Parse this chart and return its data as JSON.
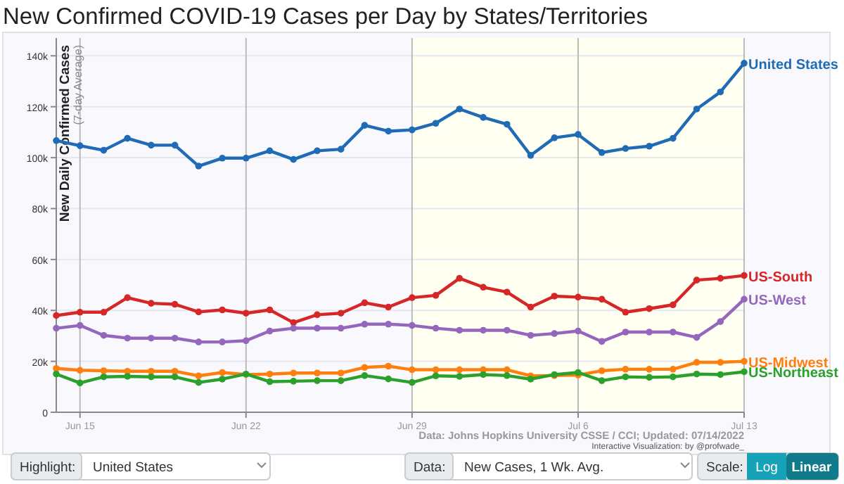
{
  "chart_data": {
    "type": "line",
    "title": "New Confirmed COVID-19 Cases per Day by States/Territories",
    "ylabel": "New Daily Confirmed Cases",
    "x": [
      "2022-06-14",
      "2022-06-15",
      "2022-06-16",
      "2022-06-17",
      "2022-06-18",
      "2022-06-19",
      "2022-06-20",
      "2022-06-21",
      "2022-06-22",
      "2022-06-23",
      "2022-06-24",
      "2022-06-25",
      "2022-06-26",
      "2022-06-27",
      "2022-06-28",
      "2022-06-29",
      "2022-06-30",
      "2022-07-01",
      "2022-07-02",
      "2022-07-03",
      "2022-07-04",
      "2022-07-05",
      "2022-07-06",
      "2022-07-07",
      "2022-07-08",
      "2022-07-09",
      "2022-07-10",
      "2022-07-11",
      "2022-07-12",
      "2022-07-13"
    ],
    "series": [
      {
        "name": "United States",
        "color": "#1f6bb5",
        "values": [
          106700,
          104700,
          102900,
          107600,
          104900,
          104900,
          96700,
          99800,
          99800,
          102700,
          99300,
          102700,
          103300,
          112700,
          110400,
          110900,
          113500,
          119100,
          115800,
          113100,
          100900,
          107800,
          109100,
          102000,
          103600,
          104500,
          107600,
          119100,
          125800,
          137100
        ]
      },
      {
        "name": "US-South",
        "color": "#d62728",
        "values": [
          38000,
          39300,
          39300,
          45000,
          42800,
          42400,
          39400,
          40200,
          38900,
          40200,
          35200,
          38300,
          38900,
          43000,
          41300,
          45000,
          45900,
          52600,
          49100,
          47200,
          41300,
          45600,
          45200,
          44400,
          39300,
          40700,
          42200,
          51900,
          52600,
          53700
        ]
      },
      {
        "name": "US-West",
        "color": "#9467bd",
        "values": [
          33000,
          34100,
          30200,
          29100,
          29100,
          29100,
          27600,
          27600,
          28100,
          31900,
          33000,
          33000,
          33000,
          34600,
          34600,
          34100,
          33000,
          32200,
          32200,
          32200,
          30200,
          30900,
          31900,
          27800,
          31500,
          31500,
          31500,
          29400,
          35600,
          44400
        ]
      },
      {
        "name": "US-Midwest",
        "color": "#ff7f0e",
        "values": [
          17200,
          16500,
          16300,
          16100,
          16100,
          16100,
          14300,
          15600,
          14800,
          15000,
          15400,
          15400,
          15400,
          17600,
          18100,
          16700,
          16700,
          16700,
          16700,
          16700,
          14300,
          14400,
          14600,
          16300,
          16900,
          16900,
          16900,
          19600,
          19600,
          20000
        ]
      },
      {
        "name": "US-Northeast",
        "color": "#2ca02c",
        "values": [
          15000,
          11500,
          13900,
          14100,
          13900,
          13900,
          11700,
          13000,
          15000,
          12000,
          12200,
          12400,
          12400,
          14400,
          13100,
          11700,
          14300,
          14100,
          14800,
          14400,
          13000,
          14800,
          15600,
          12400,
          13900,
          13700,
          13900,
          15000,
          14800,
          15900
        ]
      }
    ],
    "xlim": [
      "2022-06-14",
      "2022-07-13"
    ],
    "xticks": [
      {
        "value": "2022-06-15",
        "label": "Jun 15"
      },
      {
        "value": "2022-06-22",
        "label": "Jun 22"
      },
      {
        "value": "2022-06-29",
        "label": "Jun 29"
      },
      {
        "value": "2022-07-06",
        "label": "Jul 6"
      },
      {
        "value": "2022-07-13",
        "label": "Jul 13"
      }
    ],
    "ylim": [
      0,
      147000
    ],
    "yticks": [
      0,
      {
        "value": 20000,
        "label": "20k"
      },
      {
        "value": 40000,
        "label": "40k"
      },
      {
        "value": 60000,
        "label": "60k"
      },
      {
        "value": 80000,
        "label": "80k"
      },
      {
        "value": 100000,
        "label": "100k"
      },
      {
        "value": 120000,
        "label": "120k"
      },
      {
        "value": 140000,
        "label": "140k"
      }
    ],
    "bands": [
      {
        "axis": "x",
        "from": "2022-06-29",
        "to": "2022-07-13",
        "color": "#fffff2"
      }
    ],
    "grid": true,
    "marker": "circle",
    "annotations": [
      "(7-day Average)",
      "Data: Johns Hopkins University CSSE / CCI; Updated: 07/14/2022",
      "Interactive Visualization: by @profwade_",
      "Highlight:",
      "United States",
      "Data:",
      "New Cases, 1 Wk. Avg.",
      "Scale:",
      "Log",
      "Linear"
    ]
  }
}
